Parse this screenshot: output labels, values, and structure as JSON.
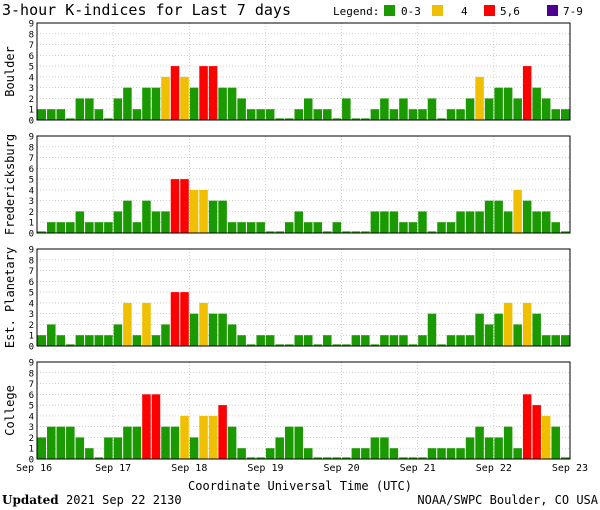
{
  "title": "3-hour K-indices for Last 7 days",
  "legend": {
    "label": "Legend:",
    "items": [
      {
        "label": "0-3",
        "color": "#1a9a00"
      },
      {
        "label": "4",
        "color": "#f0c000"
      },
      {
        "label": "5,6",
        "color": "#ff0000"
      },
      {
        "label": "7-9",
        "color": "#4b0090"
      }
    ]
  },
  "xlabel": "Coordinate Universal Time (UTC)",
  "footer": {
    "updated_label": "Updated",
    "updated_value": "2021 Sep 22 2130",
    "source": "NOAA/SWPC Boulder, CO USA"
  },
  "chart_data": {
    "type": "bar",
    "xticks": [
      "Sep 16",
      "Sep 17",
      "Sep 18",
      "Sep 19",
      "Sep 20",
      "Sep 21",
      "Sep 22",
      "Sep 23"
    ],
    "yticks": [
      "0",
      "1",
      "2",
      "3",
      "4",
      "5",
      "6",
      "7",
      "8",
      "9"
    ],
    "ylim": [
      0,
      9
    ],
    "grid": true,
    "series": [
      {
        "name": "Boulder",
        "values": [
          1,
          1,
          1,
          0,
          2,
          2,
          1,
          0,
          2,
          3,
          1,
          3,
          3,
          4,
          5,
          4,
          3,
          5,
          5,
          3,
          3,
          2,
          1,
          1,
          1,
          0,
          0,
          1,
          2,
          1,
          1,
          0,
          2,
          0,
          0,
          1,
          2,
          1,
          2,
          1,
          1,
          2,
          0,
          1,
          1,
          2,
          4,
          2,
          3,
          3,
          2,
          5,
          3,
          2,
          1,
          1,
          0
        ]
      },
      {
        "name": "Fredericksburg",
        "values": [
          0,
          1,
          1,
          1,
          2,
          1,
          1,
          1,
          2,
          3,
          1,
          3,
          2,
          2,
          5,
          5,
          4,
          4,
          3,
          3,
          1,
          1,
          1,
          1,
          0,
          0,
          1,
          2,
          1,
          1,
          0,
          1,
          0,
          0,
          0,
          2,
          2,
          2,
          1,
          1,
          2,
          0,
          1,
          1,
          2,
          2,
          2,
          3,
          3,
          2,
          4,
          3,
          2,
          2,
          1,
          0,
          0
        ]
      },
      {
        "name": "Est. Planetary",
        "values": [
          1,
          2,
          1,
          0,
          1,
          1,
          1,
          1,
          2,
          4,
          1,
          4,
          1,
          2,
          5,
          5,
          3,
          4,
          3,
          3,
          2,
          1,
          0,
          1,
          1,
          0,
          0,
          1,
          1,
          0,
          1,
          0,
          0,
          1,
          1,
          0,
          1,
          1,
          1,
          0,
          1,
          3,
          0,
          1,
          1,
          1,
          3,
          2,
          3,
          4,
          2,
          4,
          3,
          1,
          1,
          1,
          0
        ]
      },
      {
        "name": "College",
        "values": [
          2,
          3,
          3,
          3,
          2,
          1,
          0,
          2,
          2,
          3,
          3,
          6,
          6,
          3,
          3,
          4,
          2,
          4,
          4,
          5,
          3,
          1,
          0,
          0,
          1,
          2,
          3,
          3,
          1,
          0,
          0,
          0,
          0,
          1,
          1,
          2,
          2,
          1,
          0,
          0,
          0,
          1,
          1,
          1,
          1,
          2,
          3,
          2,
          2,
          3,
          1,
          6,
          5,
          4,
          3,
          0,
          0
        ]
      }
    ]
  }
}
